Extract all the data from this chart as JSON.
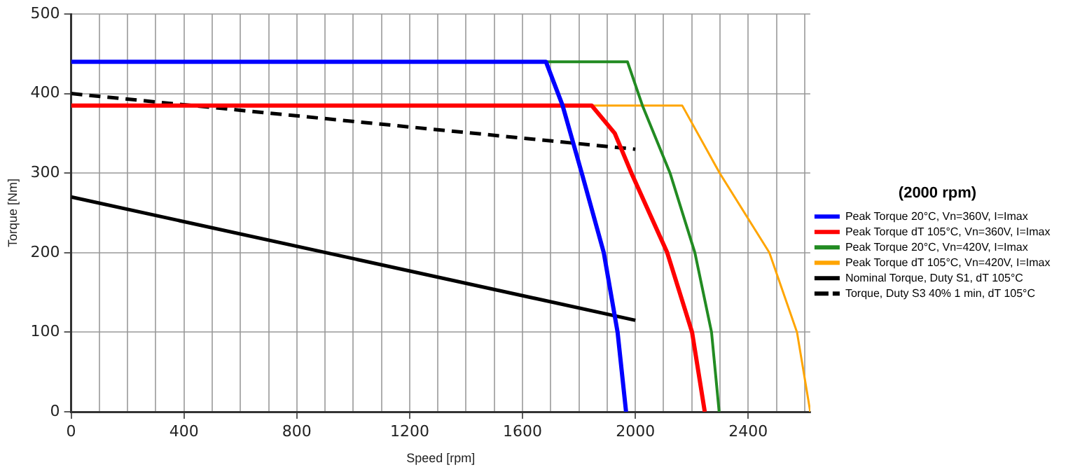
{
  "chart_data": {
    "type": "line",
    "xlabel": "Speed [rpm]",
    "ylabel": "Torque [Nm]",
    "legend_title": "(2000 rpm)",
    "legend": "right",
    "grid": true,
    "marker": "none",
    "xlim": [
      0,
      2620
    ],
    "ylim": [
      0,
      500
    ],
    "xticks": [
      0,
      {
        "value": 100,
        "label": null
      },
      {
        "value": 200,
        "label": null
      },
      {
        "value": 300,
        "label": null
      },
      400,
      {
        "value": 500,
        "label": null
      },
      {
        "value": 600,
        "label": null
      },
      {
        "value": 700,
        "label": null
      },
      800,
      {
        "value": 900,
        "label": null
      },
      {
        "value": 1000,
        "label": null
      },
      {
        "value": 1100,
        "label": null
      },
      1200,
      {
        "value": 1300,
        "label": null
      },
      {
        "value": 1400,
        "label": null
      },
      {
        "value": 1500,
        "label": null
      },
      1600,
      {
        "value": 1700,
        "label": null
      },
      {
        "value": 1800,
        "label": null
      },
      {
        "value": 1900,
        "label": null
      },
      2000,
      {
        "value": 2100,
        "label": null
      },
      {
        "value": 2200,
        "label": null
      },
      {
        "value": 2300,
        "label": null
      },
      2400,
      {
        "value": 2500,
        "label": null
      },
      {
        "value": 2600,
        "label": null
      }
    ],
    "yticks": [
      0,
      100,
      200,
      300,
      400,
      500
    ],
    "series": [
      {
        "name": "Peak Torque 20°C, Vn=360V, I=Imax",
        "color": "#0000ff",
        "x": [
          0,
          1683,
          1742,
          1810,
          1888,
          1937,
          1967
        ],
        "values": [
          440,
          440,
          385,
          300,
          200,
          100,
          0
        ]
      },
      {
        "name": "Peak Torque dT 105°C, Vn=360V, I=Imax",
        "color": "#ff0000",
        "x": [
          0,
          1845,
          1927,
          1986,
          2113,
          2201,
          2246
        ],
        "values": [
          385,
          385,
          350,
          300,
          200,
          100,
          0
        ]
      },
      {
        "name": "Peak Torque 20°C, Vn=420V, I=Imax",
        "color": "#228b22",
        "x": [
          1683,
          1972,
          2025,
          2123,
          2211,
          2270,
          2297
        ],
        "values": [
          440,
          440,
          385,
          300,
          200,
          100,
          0
        ]
      },
      {
        "name": "Peak Torque dT 105°C, Vn=420V, I=Imax",
        "color": "#ffa500",
        "x": [
          1845,
          2166,
          2299,
          2475,
          2573,
          2620
        ],
        "values": [
          385,
          385,
          300,
          200,
          100,
          0
        ]
      },
      {
        "name": "Nominal Torque, Duty S1, dT 105°C",
        "color": "#000000",
        "x": [
          0,
          2000
        ],
        "values": [
          270,
          115
        ]
      },
      {
        "name": "Torque, Duty S3 40% 1 min, dT 105°C",
        "color": "#000000",
        "line_style": "dashed",
        "x": [
          0,
          2000
        ],
        "values": [
          400,
          330
        ]
      }
    ]
  }
}
